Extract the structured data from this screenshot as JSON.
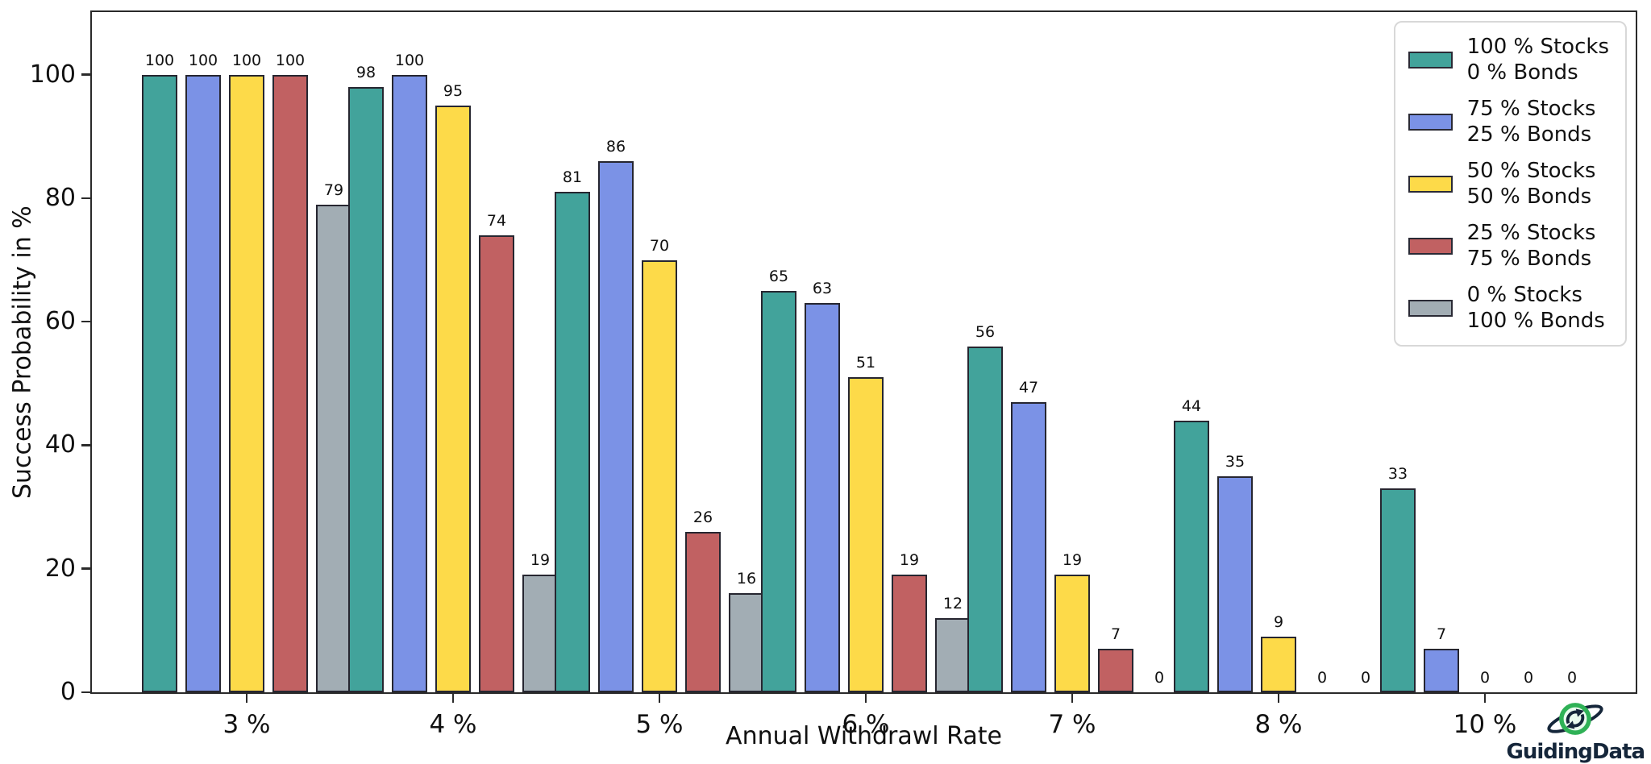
{
  "branding": {
    "name": "GuidingData"
  },
  "chart_data": {
    "type": "bar",
    "title": "",
    "xlabel": "Annual Withdrawl Rate",
    "ylabel": "Success Probability in %",
    "categories": [
      "3 %",
      "4 %",
      "5 %",
      "6 %",
      "7 %",
      "8 %",
      "10 %"
    ],
    "series": [
      {
        "name": "100 % Stocks 0 % Bonds",
        "legend": [
          "100 % Stocks",
          "0 % Bonds"
        ],
        "color": "#42a39b",
        "values": [
          100,
          98,
          81,
          65,
          56,
          44,
          33
        ]
      },
      {
        "name": "75 % Stocks 25 % Bonds",
        "legend": [
          "75 % Stocks",
          "25 % Bonds"
        ],
        "color": "#7b92e6",
        "values": [
          100,
          100,
          86,
          63,
          47,
          35,
          7
        ]
      },
      {
        "name": "50 % Stocks 50 % Bonds",
        "legend": [
          "50 % Stocks",
          "50 % Bonds"
        ],
        "color": "#fdda49",
        "values": [
          100,
          95,
          70,
          51,
          19,
          9,
          0
        ]
      },
      {
        "name": "25 % Stocks 75 % Bonds",
        "legend": [
          "25 % Stocks",
          "75 % Bonds"
        ],
        "color": "#c16162",
        "values": [
          100,
          74,
          26,
          19,
          7,
          0,
          0
        ]
      },
      {
        "name": "0 % Stocks 100 % Bonds",
        "legend": [
          "0 % Stocks",
          "100 % Bonds"
        ],
        "color": "#a2adb4",
        "values": [
          79,
          19,
          16,
          12,
          0,
          0,
          0
        ]
      }
    ],
    "yticks": [
      0,
      20,
      40,
      60,
      80,
      100
    ],
    "ylim": [
      0,
      110
    ],
    "bar_value_labels": true,
    "legend_position": "upper-right",
    "grid": false,
    "colors": {
      "spine": "#2a2a2a",
      "bar_edge": "#262630",
      "text": "#111111",
      "legend_border": "#d8d8d8",
      "background": "#ffffff",
      "logo_green": "#2fb156",
      "logo_navy": "#15263a"
    }
  }
}
